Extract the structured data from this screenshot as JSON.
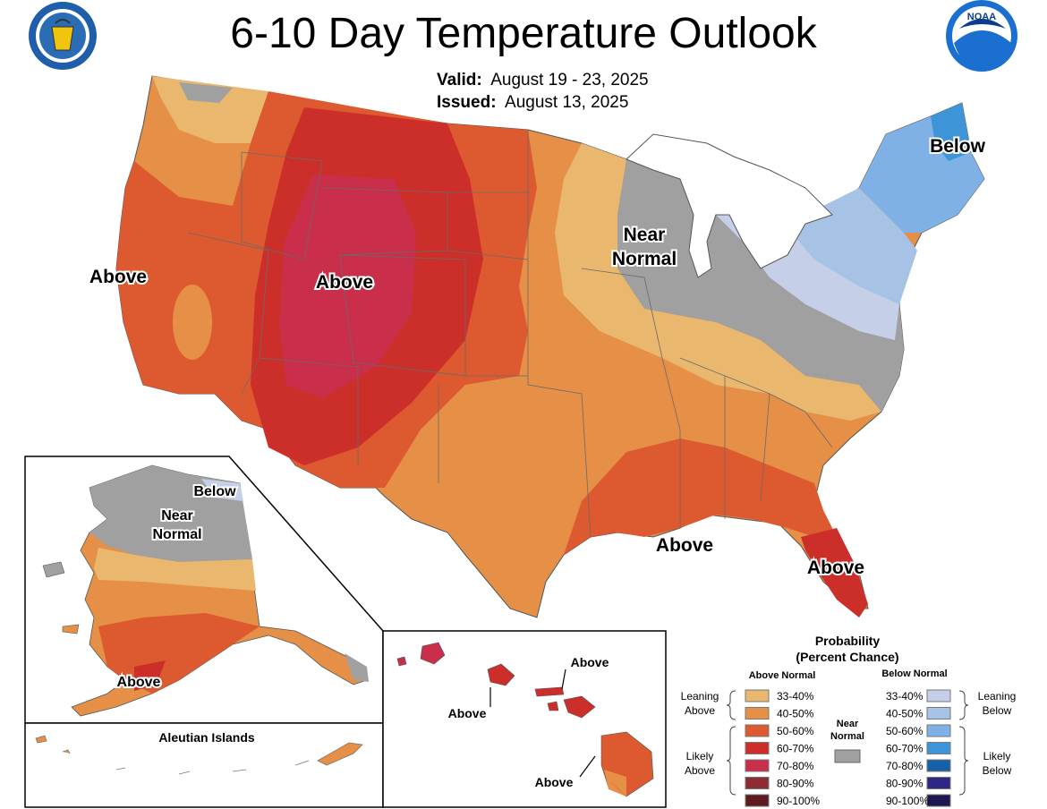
{
  "header": {
    "title": "6-10 Day Temperature Outlook",
    "valid_label": "Valid:",
    "valid_value": "August 19 - 23, 2025",
    "issued_label": "Issued:",
    "issued_value": "August 13, 2025",
    "left_seal_icon": "doc-seal-icon",
    "right_logo_icon": "noaa-logo-icon",
    "noaa_logo_text": "NOAA"
  },
  "colors": {
    "above_33_40": "#e9b86e",
    "above_40_50": "#e58f47",
    "above_50_60": "#dd5a30",
    "above_60_70": "#cc2f2a",
    "above_70_80": "#c92e4a",
    "above_80_90": "#8e2b33",
    "above_90_100": "#5d1a1f",
    "near_normal": "#a0a0a0",
    "below_33_40": "#c5cfe7",
    "below_40_50": "#a6c2e4",
    "below_50_60": "#7fb1e6",
    "below_60_70": "#3d95d8",
    "below_70_80": "#1660a8",
    "below_80_90": "#2e2785",
    "below_90_100": "#1e1850"
  },
  "map_labels": {
    "conus": [
      {
        "text": "Above"
      },
      {
        "text": "Above"
      },
      {
        "text": "Near"
      },
      {
        "text": "Normal"
      },
      {
        "text": "Below"
      },
      {
        "text": "Above"
      },
      {
        "text": "Above"
      }
    ],
    "alaska": [
      {
        "text": "Below"
      },
      {
        "text": "Near"
      },
      {
        "text": "Normal"
      },
      {
        "text": "Above"
      }
    ],
    "aleutian_title": "Aleutian Islands",
    "hawaii": [
      {
        "text": "Above"
      },
      {
        "text": "Above"
      },
      {
        "text": "Above"
      }
    ]
  },
  "legend": {
    "title_line1": "Probability",
    "title_line2": "(Percent Chance)",
    "above_header": "Above Normal",
    "below_header": "Below Normal",
    "near_header_line1": "Near",
    "near_header_line2": "Normal",
    "above_items": [
      "33-40%",
      "40-50%",
      "50-60%",
      "60-70%",
      "70-80%",
      "80-90%",
      "90-100%"
    ],
    "below_items": [
      "33-40%",
      "40-50%",
      "50-60%",
      "60-70%",
      "70-80%",
      "80-90%",
      "90-100%"
    ],
    "leaning_above": [
      "Leaning",
      "Above"
    ],
    "likely_above": [
      "Likely",
      "Above"
    ],
    "leaning_below": [
      "Leaning",
      "Below"
    ],
    "likely_below": [
      "Likely",
      "Below"
    ]
  }
}
